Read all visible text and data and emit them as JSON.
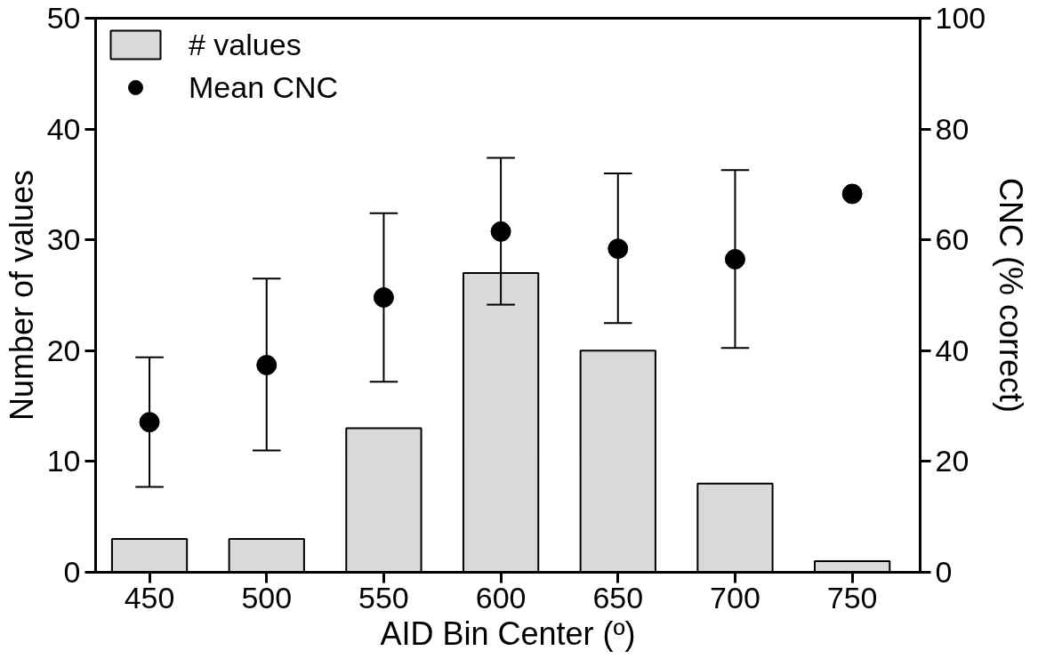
{
  "chart_data": {
    "type": "bar",
    "xlabel": "AID Bin Center (º)",
    "ylabel": "Number of values",
    "y2label": "CNC (% correct)",
    "x": [
      450,
      500,
      550,
      600,
      650,
      700,
      750
    ],
    "xlim": [
      427,
      779
    ],
    "xticks": [
      450,
      500,
      550,
      600,
      650,
      700,
      750
    ],
    "ylim": [
      0,
      50
    ],
    "yticks": [
      0,
      10,
      20,
      30,
      40,
      50
    ],
    "y2lim": [
      0,
      100
    ],
    "y2ticks": [
      0,
      20,
      40,
      60,
      80,
      100
    ],
    "series": [
      {
        "name": "# values",
        "color": "#d9d9d9",
        "values": [
          3,
          3,
          13,
          27,
          20,
          8,
          1
        ]
      },
      {
        "name": "Mean CNC",
        "type": "scatter",
        "axis": "y2",
        "color": "#000000",
        "values": [
          27.1,
          37.4,
          49.6,
          61.5,
          58.4,
          56.5,
          68.3
        ],
        "errors": [
          [
            15.4,
            38.8
          ],
          [
            22,
            53
          ],
          [
            34.4,
            64.8
          ],
          [
            48.3,
            74.8
          ],
          [
            45,
            72
          ],
          [
            40.5,
            72.6
          ],
          null
        ]
      }
    ],
    "grid": false,
    "legend": "top left",
    "marker": "circle"
  }
}
